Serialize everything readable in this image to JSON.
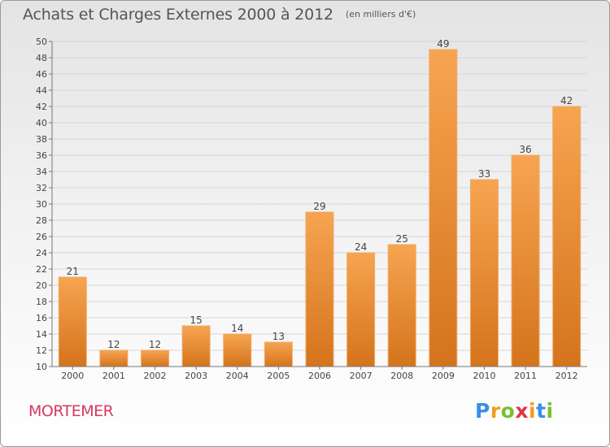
{
  "header": {
    "title": "Achats et Charges Externes 2000 à 2012",
    "unit": "(en milliers d'€)"
  },
  "footer": {
    "commune": "MORTEMER",
    "brand_letters": [
      "P",
      "r",
      "o",
      "x",
      "i",
      "t",
      "i"
    ],
    "brand_colors": [
      "#3a8ee6",
      "#f59a1e",
      "#7cbf2e",
      "#e0344a",
      "#f59a1e",
      "#3a8ee6",
      "#7cbf2e"
    ]
  },
  "colors": {
    "bar_top": "#f7a451",
    "bar_bottom": "#d4741c",
    "grid": "#d6d6d6",
    "commune": "#d8395f"
  },
  "chart_data": {
    "type": "bar",
    "title": "Achats et Charges Externes 2000 à 2012",
    "categories": [
      "2000",
      "2001",
      "2002",
      "2003",
      "2004",
      "2005",
      "2006",
      "2007",
      "2008",
      "2009",
      "2010",
      "2011",
      "2012"
    ],
    "values": [
      21,
      12,
      12,
      15,
      14,
      13,
      29,
      24,
      25,
      49,
      33,
      36,
      42
    ],
    "data_labels": [
      "21",
      "12",
      "12",
      "15",
      "14",
      "13",
      "29",
      "24",
      "25",
      "49",
      "33",
      "36",
      "42"
    ],
    "ylim": [
      10,
      50
    ],
    "ytick_step": 2,
    "grid": true,
    "legend": "none"
  }
}
